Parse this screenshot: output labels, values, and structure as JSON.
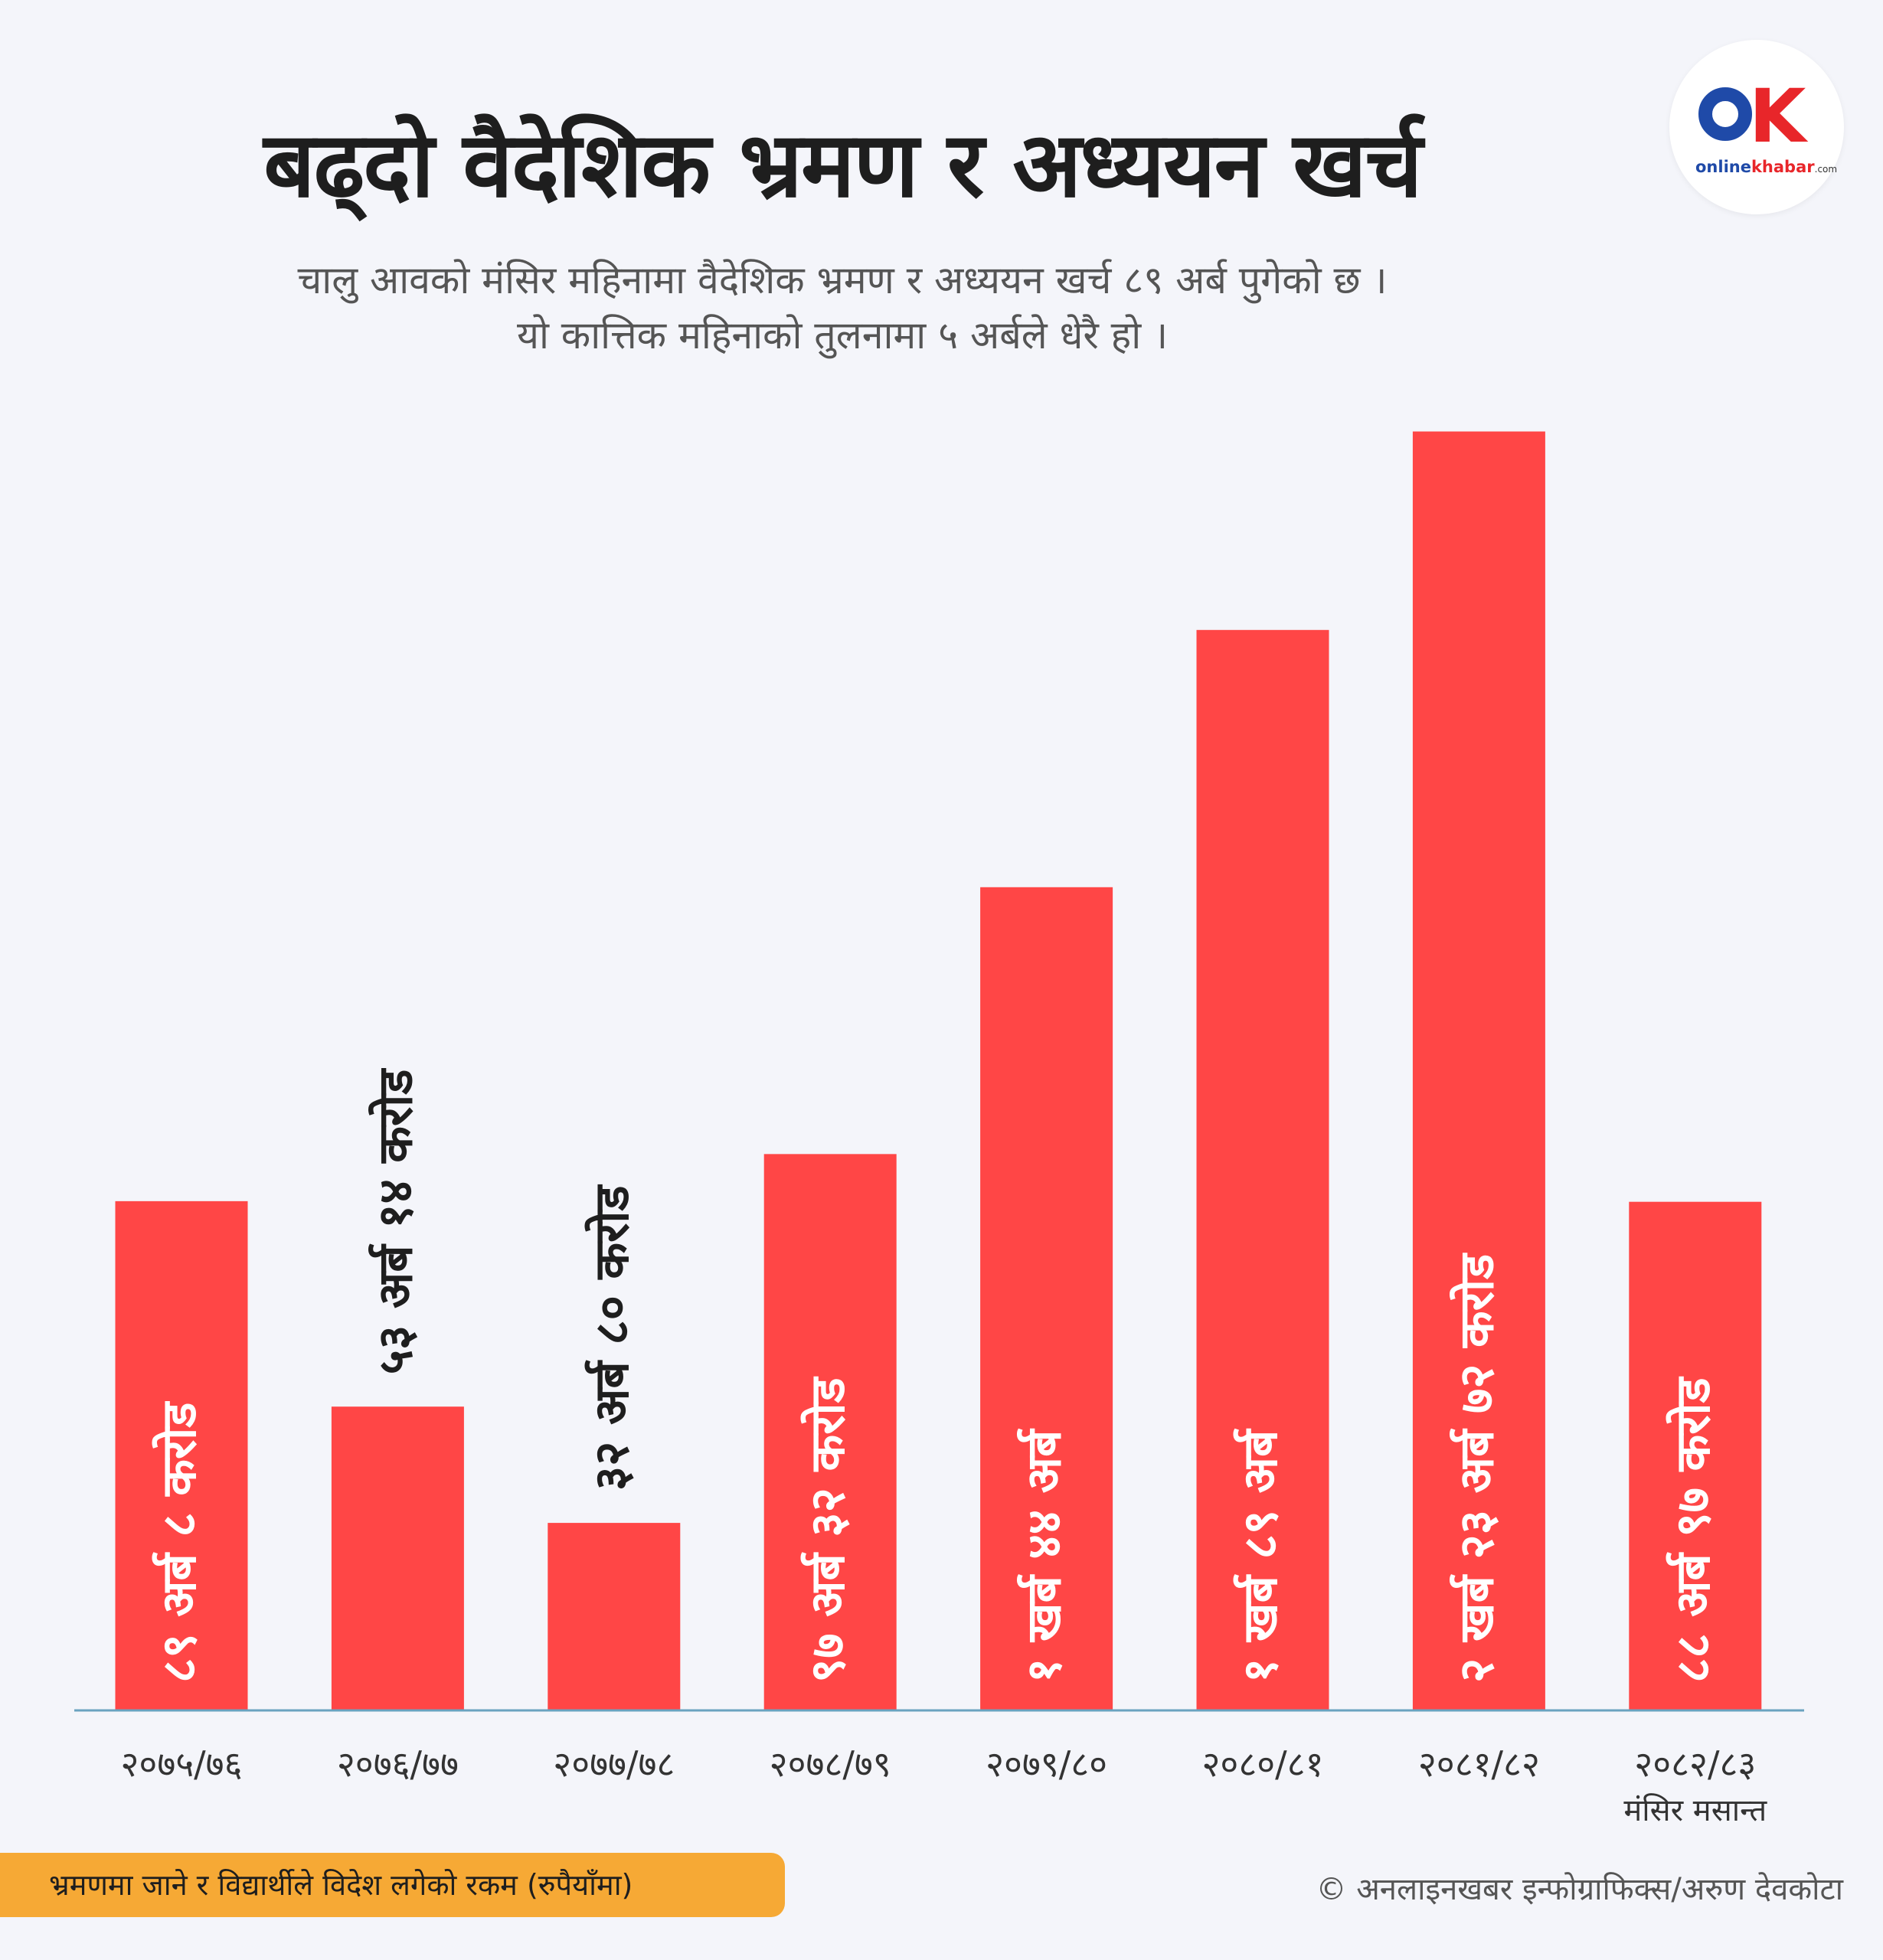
{
  "title": "बढ्दो वैदेशिक भ्रमण र अध्ययन खर्च",
  "subtitle": {
    "line1": "चालु आवको मंसिर महिनामा वैदेशिक भ्रमण र अध्ययन खर्च ८९ अर्ब पुगेको छ ।",
    "line2": "यो कात्तिक महिनाको तुलनामा ५ अर्बले धेरै हो ।"
  },
  "logo": {
    "mark_o": "O",
    "mark_k": "K",
    "brand_online": "online",
    "brand_khabar": "khabar",
    "brand_com": ".com"
  },
  "footer": {
    "note": "भ्रमणमा जाने र विद्यार्थीले विदेश लगेको रकम (रुपैयाँमा)",
    "credit": "© अनलाइनखबर इन्फोग्राफिक्स/अरुण देवकोटा"
  },
  "colors": {
    "bar": "#ff4646",
    "axis": "#6aa3c0",
    "label_inside": "#ffffff",
    "label_outside": "#1e1e1e",
    "tick": "#333333"
  },
  "chart_data": {
    "type": "bar",
    "unit": "अर्ब रुपैयाँ",
    "categories": [
      "२०७५/७६",
      "२०७६/७७",
      "२०७७/७८",
      "२०७८/७९",
      "२०७९/८०",
      "२०८०/८१",
      "२०८१/८२",
      "२०८२/८३"
    ],
    "category_sublabels": [
      "",
      "",
      "",
      "",
      "",
      "",
      "",
      "मंसिर  मसान्त"
    ],
    "values": [
      89.08,
      53.14,
      32.8,
      97.32,
      144,
      189,
      223.72,
      88.97
    ],
    "labels": [
      "८९ अर्ब ८ करोड",
      "५३ अर्ब १४ करोड",
      "३२ अर्ब ८० करोड",
      "९७ अर्ब ३२ करोड",
      "१ खर्ब ४४ अर्ब",
      "१ खर्ब ८९ अर्ब",
      "२ खर्ब २३ अर्ब ७२ करोड",
      "८८ अर्ब ९७ करोड"
    ],
    "label_inside": [
      true,
      false,
      false,
      true,
      true,
      true,
      true,
      true
    ],
    "ylim": [
      0,
      225
    ],
    "grid": false,
    "legend": "none"
  }
}
